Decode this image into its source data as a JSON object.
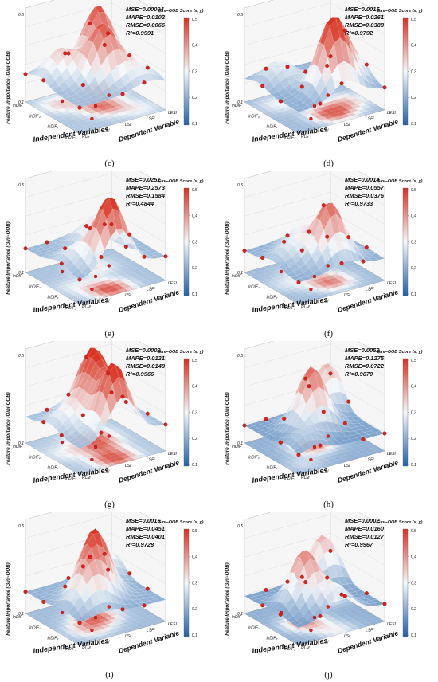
{
  "panels": [
    {
      "label": "(c)",
      "mse": "MSE=0.00004",
      "mape": "MAPE=0.0102",
      "rmse": "RMSE=0.0066",
      "r2": "R²=0.9991",
      "peaks": [
        [
          0.15,
          0.75,
          0.48
        ],
        [
          0.55,
          0.55,
          0.47
        ],
        [
          0.25,
          0.25,
          0.35
        ],
        [
          0.8,
          0.8,
          0.3
        ]
      ],
      "base_level": 0.22
    },
    {
      "label": "(d)",
      "mse": "MSE=0.0015",
      "mape": "MAPE=0.0261",
      "rmse": "RMSE=0.0388",
      "r2": "R²=0.9792",
      "peaks": [
        [
          0.75,
          0.55,
          0.52
        ],
        [
          0.25,
          0.25,
          0.3
        ],
        [
          0.6,
          0.8,
          0.35
        ]
      ],
      "base_level": 0.2
    },
    {
      "label": "(e)",
      "mse": "MSE=0.0251",
      "mape": "MAPE=0.2573",
      "rmse": "RMSE=0.1584",
      "r2": "R²=0.4844",
      "peaks": [
        [
          0.85,
          0.45,
          0.52
        ],
        [
          0.3,
          0.6,
          0.33
        ],
        [
          0.6,
          0.2,
          0.28
        ]
      ],
      "base_level": 0.21
    },
    {
      "label": "(f)",
      "mse": "MSE=0.0014",
      "mape": "MAPE=0.0557",
      "rmse": "RMSE=0.0376",
      "r2": "R²=0.9733",
      "peaks": [
        [
          0.7,
          0.55,
          0.46
        ],
        [
          0.3,
          0.5,
          0.3
        ],
        [
          0.5,
          0.2,
          0.27
        ]
      ],
      "base_level": 0.2
    },
    {
      "label": "(g)",
      "mse": "MSE=0.0002",
      "mape": "MAPE=0.0121",
      "rmse": "RMSE=0.0148",
      "r2": "R²=0.9966",
      "peaks": [
        [
          0.85,
          0.5,
          0.52
        ],
        [
          0.25,
          0.6,
          0.45
        ],
        [
          0.5,
          0.55,
          0.42
        ],
        [
          0.45,
          0.2,
          0.3
        ]
      ],
      "base_level": 0.22
    },
    {
      "label": "(h)",
      "mse": "MSE=0.0052",
      "mape": "MAPE=0.1275",
      "rmse": "RMSE=0.0722",
      "r2": "R²=0.9070",
      "peaks": [
        [
          0.45,
          0.5,
          0.46
        ],
        [
          0.1,
          0.9,
          0.38
        ],
        [
          0.8,
          0.2,
          0.25
        ]
      ],
      "base_level": 0.18
    },
    {
      "label": "(i)",
      "mse": "MSE=0.0016",
      "mape": "MAPE=0.0451",
      "rmse": "RMSE=0.0401",
      "r2": "R²=0.9728",
      "peaks": [
        [
          0.5,
          0.5,
          0.48
        ],
        [
          0.7,
          0.3,
          0.36
        ],
        [
          0.1,
          0.85,
          0.32
        ]
      ],
      "base_level": 0.2
    },
    {
      "label": "(j)",
      "mse": "MSE=0.0002",
      "mape": "MAPE=0.0160",
      "rmse": "RMSE=0.0127",
      "r2": "R²=0.9967",
      "peaks": [
        [
          0.55,
          0.35,
          0.43
        ],
        [
          0.1,
          0.85,
          0.38
        ],
        [
          0.9,
          0.5,
          0.3
        ]
      ],
      "base_level": 0.18
    }
  ],
  "axes": {
    "z_label": "Feature Importance (Gini-OOB)",
    "x_label": "Independent Variables",
    "y_label": "Dependent Variable",
    "x_ticks_ce": [
      "lnDIF",
      "lnDIF₁",
      "lnDIF₂",
      "lnDIF₃"
    ],
    "y_ticks_ce": [
      "RLE",
      "LBI",
      "LSI",
      "LSFI",
      "LESI"
    ],
    "y_ticks_other": [
      "RLM",
      "LBI",
      "LSI",
      "LSFI",
      "LESI"
    ],
    "z_ticks": [
      "0.1",
      "0.5"
    ]
  },
  "colorbar": {
    "title": "Gini–OOB Score (x, y)",
    "ticks": [
      "0.5",
      "0.4",
      "0.3",
      "0.2",
      "0.1"
    ],
    "range": [
      0.1,
      0.5
    ]
  },
  "colors": {
    "low": "#1f5fa8",
    "mid": "#f4f7fa",
    "high": "#d7301f",
    "point": "#e0201a"
  },
  "chart_data": {
    "type": "surface3d",
    "colorbar_range": [
      0.1,
      0.5
    ],
    "panels": [
      {
        "label": "(c)",
        "MSE": 4e-05,
        "MAPE": 0.0102,
        "RMSE": 0.0066,
        "R2": 0.9991
      },
      {
        "label": "(d)",
        "MSE": 0.0015,
        "MAPE": 0.0261,
        "RMSE": 0.0388,
        "R2": 0.9792
      },
      {
        "label": "(e)",
        "MSE": 0.0251,
        "MAPE": 0.2573,
        "RMSE": 0.1584,
        "R2": 0.4844
      },
      {
        "label": "(f)",
        "MSE": 0.0014,
        "MAPE": 0.0557,
        "RMSE": 0.0376,
        "R2": 0.9733
      },
      {
        "label": "(g)",
        "MSE": 0.0002,
        "MAPE": 0.0121,
        "RMSE": 0.0148,
        "R2": 0.9966
      },
      {
        "label": "(h)",
        "MSE": 0.0052,
        "MAPE": 0.1275,
        "RMSE": 0.0722,
        "R2": 0.907
      },
      {
        "label": "(i)",
        "MSE": 0.0016,
        "MAPE": 0.0451,
        "RMSE": 0.0401,
        "R2": 0.9728
      },
      {
        "label": "(j)",
        "MSE": 0.0002,
        "MAPE": 0.016,
        "RMSE": 0.0127,
        "R2": 0.9967
      }
    ]
  }
}
